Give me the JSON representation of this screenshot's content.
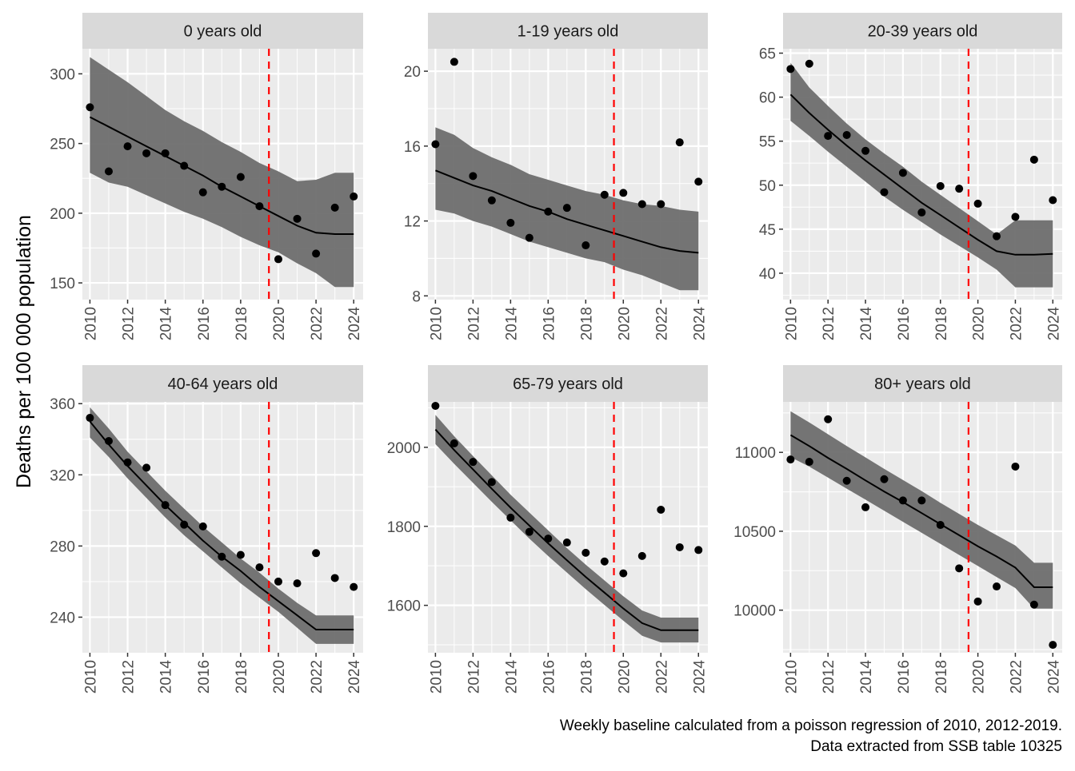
{
  "y_axis_label": "Deaths per 100 000 population",
  "caption_lines": [
    "Weekly baseline calculated from a poisson regression of 2010, 2012-2019.",
    "Data extracted from SSB table 10325"
  ],
  "colors": {
    "panel_bg": "#ebebeb",
    "strip_bg": "#d9d9d9",
    "grid": "#ffffff",
    "ribbon": "#6e6e6e",
    "line": "#000000",
    "points": "#000000",
    "vline": "#ff0000"
  },
  "chart_data": [
    {
      "type": "scatter",
      "title": "0 years old",
      "xlim": [
        2009.6,
        2024.5
      ],
      "ylim": [
        138,
        318
      ],
      "x_ticks": [
        2010,
        2012,
        2014,
        2016,
        2018,
        2020,
        2022,
        2024
      ],
      "y_ticks": [
        150,
        200,
        250,
        300
      ],
      "vline_x": 2019.5,
      "points": {
        "x": [
          2010,
          2011,
          2012,
          2013,
          2014,
          2015,
          2016,
          2017,
          2018,
          2019,
          2020,
          2021,
          2022,
          2023,
          2024
        ],
        "y": [
          276,
          230,
          248,
          243,
          243,
          234,
          215,
          219,
          226,
          205,
          167,
          196,
          171,
          204,
          212
        ]
      },
      "baseline": {
        "x": [
          2010,
          2011,
          2012,
          2013,
          2014,
          2015,
          2016,
          2017,
          2018,
          2019,
          2020,
          2021,
          2022,
          2023,
          2024
        ],
        "y": [
          269,
          262,
          255,
          248,
          241,
          234,
          227,
          219,
          212,
          205,
          198,
          191,
          186,
          185,
          185
        ],
        "lower": [
          229,
          222,
          219,
          213,
          207,
          201,
          196,
          190,
          183,
          177,
          172,
          164,
          157,
          147,
          147
        ],
        "upper": [
          312,
          303,
          294,
          284,
          274,
          266,
          259,
          251,
          244,
          236,
          230,
          223,
          224,
          229,
          229
        ]
      }
    },
    {
      "type": "scatter",
      "title": "1-19 years old",
      "xlim": [
        2009.6,
        2024.5
      ],
      "ylim": [
        7.8,
        21.2
      ],
      "x_ticks": [
        2010,
        2012,
        2014,
        2016,
        2018,
        2020,
        2022,
        2024
      ],
      "y_ticks": [
        8,
        12,
        16,
        20
      ],
      "vline_x": 2019.5,
      "points": {
        "x": [
          2010,
          2011,
          2012,
          2013,
          2014,
          2015,
          2016,
          2017,
          2018,
          2019,
          2020,
          2021,
          2022,
          2023,
          2024
        ],
        "y": [
          16.1,
          20.5,
          14.4,
          13.1,
          11.9,
          11.1,
          12.5,
          12.7,
          10.7,
          13.4,
          13.5,
          12.9,
          12.9,
          16.2,
          14.1
        ]
      },
      "baseline": {
        "x": [
          2010,
          2011,
          2012,
          2013,
          2014,
          2015,
          2016,
          2017,
          2018,
          2019,
          2020,
          2021,
          2022,
          2023,
          2024
        ],
        "y": [
          14.7,
          14.3,
          13.9,
          13.6,
          13.2,
          12.8,
          12.5,
          12.1,
          11.8,
          11.5,
          11.2,
          10.9,
          10.6,
          10.4,
          10.3
        ],
        "lower": [
          12.6,
          12.4,
          12.0,
          11.7,
          11.3,
          10.9,
          10.6,
          10.3,
          10.0,
          9.8,
          9.4,
          9.1,
          8.7,
          8.3,
          8.3
        ],
        "upper": [
          17.0,
          16.6,
          15.9,
          15.4,
          15.0,
          14.5,
          14.2,
          13.9,
          13.6,
          13.4,
          13.1,
          12.9,
          12.8,
          12.6,
          12.5
        ]
      }
    },
    {
      "type": "scatter",
      "title": "20-39 years old",
      "xlim": [
        2009.6,
        2024.5
      ],
      "ylim": [
        37,
        65.5
      ],
      "x_ticks": [
        2010,
        2012,
        2014,
        2016,
        2018,
        2020,
        2022,
        2024
      ],
      "y_ticks": [
        40,
        45,
        50,
        55,
        60,
        65
      ],
      "vline_x": 2019.5,
      "points": {
        "x": [
          2010,
          2011,
          2012,
          2013,
          2014,
          2015,
          2016,
          2017,
          2018,
          2019,
          2020,
          2021,
          2022,
          2023,
          2024
        ],
        "y": [
          63.2,
          63.8,
          55.6,
          55.7,
          53.9,
          49.2,
          51.4,
          46.9,
          49.9,
          49.6,
          47.9,
          44.2,
          46.4,
          52.9,
          48.3
        ]
      },
      "baseline": {
        "x": [
          2010,
          2011,
          2012,
          2013,
          2014,
          2015,
          2016,
          2017,
          2018,
          2019,
          2020,
          2021,
          2022,
          2023,
          2024
        ],
        "y": [
          60.3,
          58.2,
          56.3,
          54.5,
          52.8,
          51.2,
          49.6,
          48.0,
          46.6,
          45.2,
          43.8,
          42.5,
          42.1,
          42.1,
          42.2
        ],
        "lower": [
          57.3,
          55.6,
          53.8,
          52.1,
          50.4,
          48.7,
          47.2,
          45.8,
          44.4,
          43.1,
          41.8,
          40.4,
          38.4,
          38.4,
          38.4
        ],
        "upper": [
          63.9,
          61.1,
          59.0,
          57.0,
          55.2,
          53.6,
          52.1,
          50.4,
          48.9,
          47.4,
          45.9,
          44.4,
          46.0,
          46.0,
          46.0
        ]
      }
    },
    {
      "type": "scatter",
      "title": "40-64 years old",
      "xlim": [
        2009.6,
        2024.5
      ],
      "ylim": [
        220,
        361
      ],
      "x_ticks": [
        2010,
        2012,
        2014,
        2016,
        2018,
        2020,
        2022,
        2024
      ],
      "y_ticks": [
        240,
        280,
        320,
        360
      ],
      "vline_x": 2019.5,
      "points": {
        "x": [
          2010,
          2011,
          2012,
          2013,
          2014,
          2015,
          2016,
          2017,
          2018,
          2019,
          2020,
          2021,
          2022,
          2023,
          2024
        ],
        "y": [
          352,
          339,
          327,
          324,
          303,
          292,
          291,
          274,
          275,
          268,
          260,
          259,
          276,
          262,
          257
        ]
      },
      "baseline": {
        "x": [
          2010,
          2011,
          2012,
          2013,
          2014,
          2015,
          2016,
          2017,
          2018,
          2019,
          2020,
          2021,
          2022,
          2023,
          2024
        ],
        "y": [
          350,
          337,
          325,
          314,
          303,
          293,
          283,
          274,
          266,
          257,
          249,
          241,
          233,
          233,
          233
        ],
        "lower": [
          341,
          330,
          318,
          307,
          296,
          286,
          277,
          268,
          259,
          251,
          243,
          234,
          225,
          225,
          225
        ],
        "upper": [
          358,
          346,
          333,
          322,
          311,
          301,
          291,
          282,
          273,
          265,
          256,
          248,
          241,
          241,
          241
        ]
      }
    },
    {
      "type": "scatter",
      "title": "65-79 years old",
      "xlim": [
        2009.6,
        2024.5
      ],
      "ylim": [
        1480,
        2115
      ],
      "x_ticks": [
        2010,
        2012,
        2014,
        2016,
        2018,
        2020,
        2022,
        2024
      ],
      "y_ticks": [
        1600,
        1800,
        2000
      ],
      "vline_x": 2019.5,
      "points": {
        "x": [
          2010,
          2011,
          2012,
          2013,
          2014,
          2015,
          2016,
          2017,
          2018,
          2019,
          2020,
          2021,
          2022,
          2023,
          2024
        ],
        "y": [
          2105,
          2010,
          1963,
          1912,
          1822,
          1786,
          1769,
          1759,
          1733,
          1711,
          1681,
          1725,
          1842,
          1747,
          1740
        ]
      },
      "baseline": {
        "x": [
          2010,
          2011,
          2012,
          2013,
          2014,
          2015,
          2016,
          2017,
          2018,
          2019,
          2020,
          2021,
          2022,
          2023,
          2024
        ],
        "y": [
          2045,
          1993,
          1944,
          1895,
          1847,
          1802,
          1757,
          1714,
          1672,
          1632,
          1592,
          1555,
          1537,
          1537,
          1537
        ],
        "lower": [
          2008,
          1958,
          1910,
          1862,
          1815,
          1769,
          1725,
          1683,
          1641,
          1601,
          1561,
          1523,
          1506,
          1506,
          1506
        ],
        "upper": [
          2082,
          2028,
          1978,
          1929,
          1880,
          1835,
          1790,
          1745,
          1703,
          1663,
          1623,
          1587,
          1569,
          1569,
          1569
        ]
      }
    },
    {
      "type": "scatter",
      "title": "80+ years old",
      "xlim": [
        2009.6,
        2024.5
      ],
      "ylim": [
        9730,
        11320
      ],
      "x_ticks": [
        2010,
        2012,
        2014,
        2016,
        2018,
        2020,
        2022,
        2024
      ],
      "y_ticks": [
        10000,
        10500,
        11000
      ],
      "vline_x": 2019.5,
      "points": {
        "x": [
          2010,
          2011,
          2012,
          2013,
          2014,
          2015,
          2016,
          2017,
          2018,
          2019,
          2020,
          2021,
          2022,
          2023,
          2024
        ],
        "y": [
          10955,
          10940,
          11210,
          10820,
          10652,
          10830,
          10695,
          10695,
          10540,
          10265,
          10055,
          10150,
          10910,
          10035,
          9780
        ]
      },
      "baseline": {
        "x": [
          2010,
          2011,
          2012,
          2013,
          2014,
          2015,
          2016,
          2017,
          2018,
          2019,
          2020,
          2021,
          2022,
          2023,
          2024
        ],
        "y": [
          11110,
          11040,
          10965,
          10895,
          10822,
          10752,
          10685,
          10615,
          10545,
          10475,
          10405,
          10340,
          10270,
          10145,
          10145
        ],
        "lower": [
          10970,
          10910,
          10840,
          10770,
          10700,
          10630,
          10560,
          10490,
          10420,
          10350,
          10280,
          10210,
          10140,
          10010,
          10010
        ],
        "upper": [
          11260,
          11190,
          11115,
          11040,
          10968,
          10895,
          10825,
          10755,
          10680,
          10610,
          10540,
          10475,
          10410,
          10300,
          10300
        ]
      }
    }
  ]
}
